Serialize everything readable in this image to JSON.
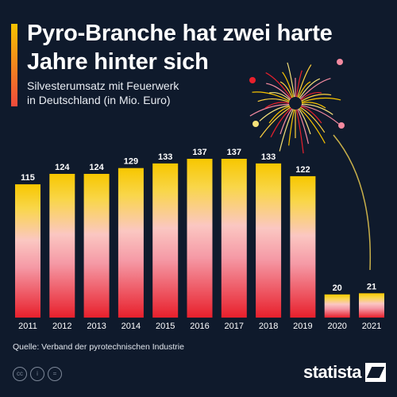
{
  "header": {
    "title_line1": "Pyro-Branche hat zwei harte",
    "title_line2": "Jahre hinter sich",
    "subtitle_line1": "Silvesterumsatz mit Feuerwerk",
    "subtitle_line2": "in Deutschland (in Mio. Euro)"
  },
  "chart_data": {
    "type": "bar",
    "categories": [
      "2011",
      "2012",
      "2013",
      "2014",
      "2015",
      "2016",
      "2017",
      "2018",
      "2019",
      "2020",
      "2021"
    ],
    "values": [
      115,
      124,
      124,
      129,
      133,
      137,
      137,
      133,
      122,
      20,
      21
    ],
    "title": "Pyro-Branche hat zwei harte Jahre hinter sich",
    "subtitle": "Silvesterumsatz mit Feuerwerk in Deutschland (in Mio. Euro)",
    "ylim": [
      0,
      137
    ],
    "grid": false,
    "legend": "none",
    "data_labels": true,
    "colors": {
      "bar_top": "#f7c700",
      "bar_mid": "#f4a3b4",
      "bar_bottom": "#e8202c",
      "background": "#0f1a2c"
    }
  },
  "footer": {
    "source": "Quelle: Verband der pyrotechnischen Industrie",
    "brand": "statista",
    "license_icons": [
      "cc-icon",
      "by-icon",
      "nd-icon"
    ]
  }
}
